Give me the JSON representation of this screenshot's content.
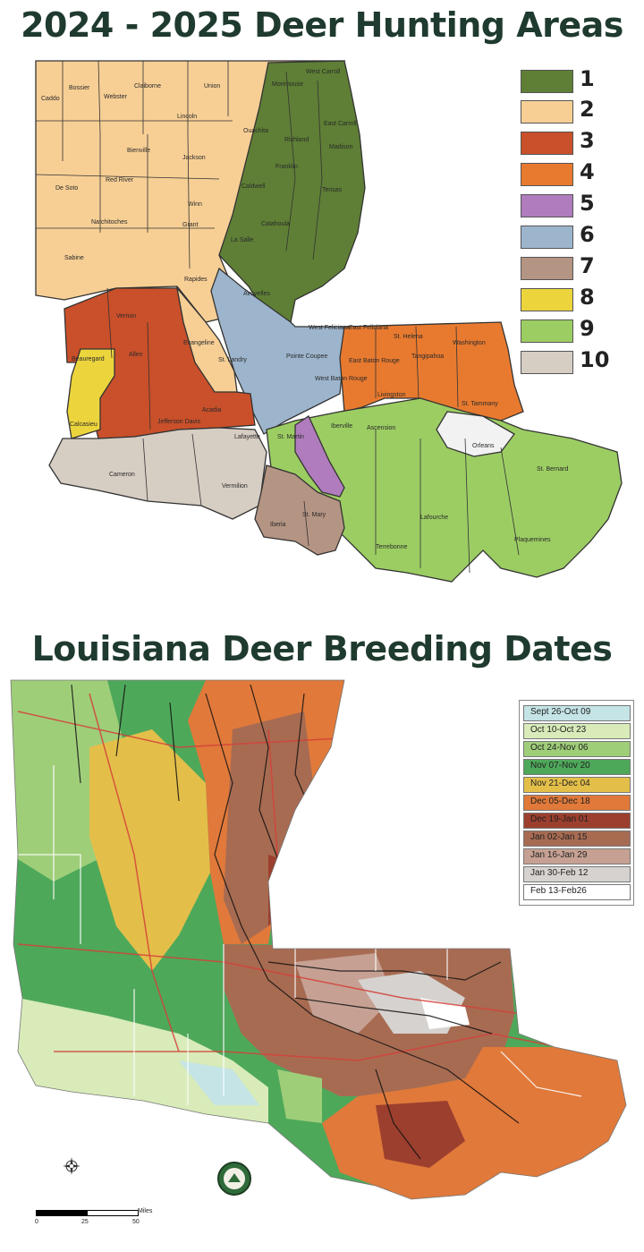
{
  "map1": {
    "title": "2024 - 2025 Deer Hunting Areas",
    "legend": [
      {
        "label": "1",
        "color": "#5e7f35"
      },
      {
        "label": "2",
        "color": "#f7cf95"
      },
      {
        "label": "3",
        "color": "#c9502a"
      },
      {
        "label": "4",
        "color": "#e87a2f"
      },
      {
        "label": "5",
        "color": "#b07cbd"
      },
      {
        "label": "6",
        "color": "#9db5cc"
      },
      {
        "label": "7",
        "color": "#b49483"
      },
      {
        "label": "8",
        "color": "#ecd43d"
      },
      {
        "label": "9",
        "color": "#9ccd63"
      },
      {
        "label": "10",
        "color": "#d6cdc3"
      }
    ],
    "parishes": [
      {
        "name": "Caddo"
      },
      {
        "name": "Bossier"
      },
      {
        "name": "Webster"
      },
      {
        "name": "Claiborne"
      },
      {
        "name": "Union"
      },
      {
        "name": "Morehouse"
      },
      {
        "name": "West Carroll"
      },
      {
        "name": "East Carroll"
      },
      {
        "name": "Lincoln"
      },
      {
        "name": "Ouachita"
      },
      {
        "name": "Richland"
      },
      {
        "name": "Madison"
      },
      {
        "name": "Bienville"
      },
      {
        "name": "Jackson"
      },
      {
        "name": "Franklin"
      },
      {
        "name": "Tensas"
      },
      {
        "name": "De Soto"
      },
      {
        "name": "Red River"
      },
      {
        "name": "Caldwell"
      },
      {
        "name": "Winn"
      },
      {
        "name": "Catahoula"
      },
      {
        "name": "Natchitoches"
      },
      {
        "name": "Grant"
      },
      {
        "name": "La Salle"
      },
      {
        "name": "Sabine"
      },
      {
        "name": "Vernon"
      },
      {
        "name": "Rapides"
      },
      {
        "name": "Avoyelles"
      },
      {
        "name": "Beauregard"
      },
      {
        "name": "Allen"
      },
      {
        "name": "Evangeline"
      },
      {
        "name": "St. Landry"
      },
      {
        "name": "West Feliciana"
      },
      {
        "name": "East Feliciana"
      },
      {
        "name": "St. Helena"
      },
      {
        "name": "Tangipahoa"
      },
      {
        "name": "Washington"
      },
      {
        "name": "Pointe Coupee"
      },
      {
        "name": "East Baton Rouge"
      },
      {
        "name": "West Baton Rouge"
      },
      {
        "name": "Livingston"
      },
      {
        "name": "St. Tammany"
      },
      {
        "name": "Calcasieu"
      },
      {
        "name": "Jefferson Davis"
      },
      {
        "name": "Acadia"
      },
      {
        "name": "Lafayette"
      },
      {
        "name": "St. Martin"
      },
      {
        "name": "Iberville"
      },
      {
        "name": "Ascension"
      },
      {
        "name": "Orleans"
      },
      {
        "name": "St. Bernard"
      },
      {
        "name": "Cameron"
      },
      {
        "name": "Vermilion"
      },
      {
        "name": "Iberia"
      },
      {
        "name": "St. Mary"
      },
      {
        "name": "Lafourche"
      },
      {
        "name": "Terrebonne"
      },
      {
        "name": "Plaquemines"
      }
    ]
  },
  "map2": {
    "title": "Louisiana Deer Breeding Dates",
    "legend": [
      {
        "label": "Sept 26-Oct 09",
        "color": "#c4e4e6"
      },
      {
        "label": "Oct 10-Oct 23",
        "color": "#d8ebb9"
      },
      {
        "label": "Oct 24-Nov 06",
        "color": "#9fce79"
      },
      {
        "label": "Nov 07-Nov 20",
        "color": "#4ea85a"
      },
      {
        "label": "Nov 21-Dec 04",
        "color": "#e3bf4a"
      },
      {
        "label": "Dec 05-Dec 18",
        "color": "#e0793a"
      },
      {
        "label": "Dec 19-Jan 01",
        "color": "#9c3f2e"
      },
      {
        "label": "Jan 02-Jan 15",
        "color": "#a76b52"
      },
      {
        "label": "Jan 16-Jan 29",
        "color": "#c6a193"
      },
      {
        "label": "Jan 30-Feb 12",
        "color": "#d6d2cf"
      },
      {
        "label": "Feb 13-Feb26",
        "color": "#ffffff"
      }
    ],
    "scale": {
      "label": "Miles",
      "ticks": [
        "0",
        "25",
        "50"
      ]
    }
  }
}
